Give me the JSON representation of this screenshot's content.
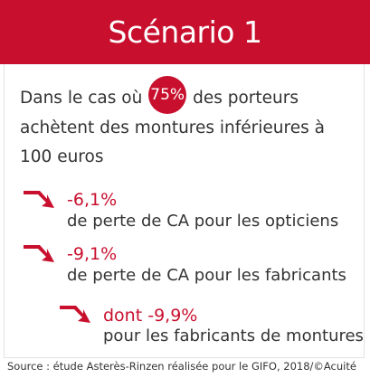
{
  "header": {
    "title": "Scénario 1"
  },
  "intro": {
    "text_before": "Dans le cas où",
    "percentage": "75%",
    "text_after": "des porteurs achètent des montures inférieures à 100 euros"
  },
  "items": [
    {
      "value": "-6,1%",
      "description": "de perte de CA pour les opticiens"
    },
    {
      "value": "-9,1%",
      "description": "de perte de CA pour les fabricants"
    },
    {
      "value": "dont -9,9%",
      "description": "pour les fabricants de montures"
    }
  ],
  "source": "Source : étude Asterès-Rinzen réalisée pour le GIFO, 2018/©Acuité",
  "colors": {
    "accent": "#c8102e",
    "text": "#333333"
  }
}
